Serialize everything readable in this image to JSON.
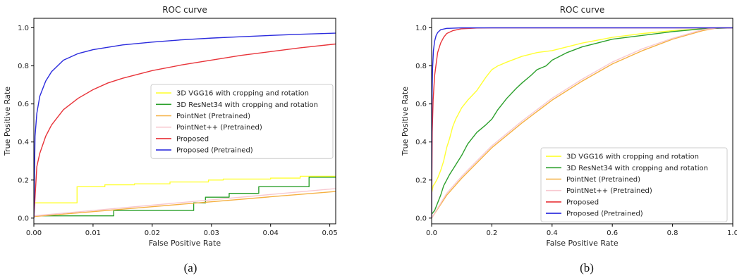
{
  "chart_data": [
    {
      "type": "line",
      "title": "ROC curve",
      "xlabel": "False Positive Rate",
      "ylabel": "True Positive Rate",
      "xlim": [
        0,
        0.051
      ],
      "ylim": [
        -0.03,
        1.05
      ],
      "xticks": [
        "0.00",
        "0.01",
        "0.02",
        "0.03",
        "0.04",
        "0.05"
      ],
      "yticks": [
        "0.0",
        "0.2",
        "0.4",
        "0.6",
        "0.8",
        "1.0"
      ],
      "xtick_values": [
        0,
        0.01,
        0.02,
        0.03,
        0.04,
        0.05
      ],
      "ytick_values": [
        0,
        0.2,
        0.4,
        0.6,
        0.8,
        1.0
      ],
      "legend_position": "center-right",
      "caption": "(a)",
      "series": [
        {
          "name": "3D VGG16 with cropping and rotation",
          "color": "#ffff33",
          "x": [
            0,
            0.0073,
            0.0073,
            0.012,
            0.012,
            0.017,
            0.017,
            0.023,
            0.023,
            0.0295,
            0.0295,
            0.032,
            0.032,
            0.04,
            0.04,
            0.045,
            0.045,
            0.051
          ],
          "y": [
            0.08,
            0.08,
            0.165,
            0.165,
            0.175,
            0.175,
            0.18,
            0.18,
            0.19,
            0.19,
            0.2,
            0.2,
            0.205,
            0.205,
            0.21,
            0.21,
            0.22,
            0.22
          ]
        },
        {
          "name": "3D ResNet34 with cropping and rotation",
          "color": "#2ca02c",
          "x": [
            0,
            0.0135,
            0.0135,
            0.027,
            0.027,
            0.029,
            0.029,
            0.033,
            0.033,
            0.038,
            0.038,
            0.0465,
            0.0465,
            0.051
          ],
          "y": [
            0.012,
            0.012,
            0.04,
            0.04,
            0.08,
            0.08,
            0.11,
            0.11,
            0.13,
            0.13,
            0.165,
            0.165,
            0.215,
            0.215
          ]
        },
        {
          "name": "PointNet (Pretrained)",
          "color": "#f5b041",
          "x": [
            0,
            0.01,
            0.02,
            0.03,
            0.04,
            0.051
          ],
          "y": [
            0.008,
            0.034,
            0.06,
            0.086,
            0.112,
            0.14
          ]
        },
        {
          "name": "PointNet++ (Pretrained)",
          "color": "#f8c8d0",
          "x": [
            0,
            0.01,
            0.02,
            0.03,
            0.04,
            0.051
          ],
          "y": [
            0.012,
            0.04,
            0.068,
            0.096,
            0.124,
            0.155
          ]
        },
        {
          "name": "Proposed",
          "color": "#e8343a",
          "x": [
            0,
            0.0005,
            0.001,
            0.002,
            0.003,
            0.005,
            0.0075,
            0.01,
            0.0125,
            0.015,
            0.02,
            0.025,
            0.03,
            0.035,
            0.04,
            0.045,
            0.051
          ],
          "y": [
            0,
            0.27,
            0.34,
            0.43,
            0.49,
            0.57,
            0.63,
            0.675,
            0.71,
            0.735,
            0.775,
            0.805,
            0.83,
            0.855,
            0.875,
            0.895,
            0.915
          ]
        },
        {
          "name": "Proposed (Pretrained)",
          "color": "#2b2bdd",
          "x": [
            0,
            0.0002,
            0.0005,
            0.001,
            0.002,
            0.003,
            0.005,
            0.0075,
            0.01,
            0.015,
            0.02,
            0.025,
            0.03,
            0.035,
            0.04,
            0.045,
            0.051
          ],
          "y": [
            0,
            0.43,
            0.55,
            0.64,
            0.72,
            0.77,
            0.83,
            0.865,
            0.885,
            0.91,
            0.925,
            0.937,
            0.946,
            0.953,
            0.96,
            0.966,
            0.972
          ]
        }
      ]
    },
    {
      "type": "line",
      "title": "ROC curve",
      "xlabel": "False Positive Rate",
      "ylabel": "True Positive Rate",
      "xlim": [
        0,
        1.0
      ],
      "ylim": [
        -0.03,
        1.05
      ],
      "xticks": [
        "0.0",
        "0.2",
        "0.4",
        "0.6",
        "0.8",
        "1.0"
      ],
      "yticks": [
        "0.0",
        "0.2",
        "0.4",
        "0.6",
        "0.8",
        "1.0"
      ],
      "xtick_values": [
        0,
        0.2,
        0.4,
        0.6,
        0.8,
        1.0
      ],
      "ytick_values": [
        0,
        0.2,
        0.4,
        0.6,
        0.8,
        1.0
      ],
      "legend_position": "lower-right",
      "caption": "(b)",
      "series": [
        {
          "name": "3D VGG16 with cropping and rotation",
          "color": "#ffff33",
          "x": [
            0,
            0.005,
            0.01,
            0.02,
            0.03,
            0.04,
            0.05,
            0.06,
            0.07,
            0.08,
            0.09,
            0.1,
            0.12,
            0.15,
            0.18,
            0.2,
            0.22,
            0.25,
            0.3,
            0.35,
            0.4,
            0.45,
            0.5,
            0.6,
            0.7,
            0.8,
            0.9,
            0.95,
            1.0
          ],
          "y": [
            0.13,
            0.17,
            0.18,
            0.21,
            0.25,
            0.3,
            0.37,
            0.42,
            0.48,
            0.52,
            0.55,
            0.58,
            0.62,
            0.67,
            0.74,
            0.78,
            0.8,
            0.82,
            0.85,
            0.87,
            0.88,
            0.9,
            0.92,
            0.95,
            0.97,
            0.985,
            0.995,
            1.0,
            1.0
          ]
        },
        {
          "name": "3D ResNet34 with cropping and rotation",
          "color": "#2ca02c",
          "x": [
            0,
            0.01,
            0.02,
            0.03,
            0.04,
            0.05,
            0.06,
            0.08,
            0.1,
            0.12,
            0.15,
            0.18,
            0.2,
            0.22,
            0.25,
            0.28,
            0.3,
            0.33,
            0.35,
            0.38,
            0.4,
            0.45,
            0.5,
            0.55,
            0.6,
            0.7,
            0.8,
            0.9,
            1.0
          ],
          "y": [
            0.02,
            0.04,
            0.08,
            0.12,
            0.17,
            0.2,
            0.23,
            0.28,
            0.33,
            0.39,
            0.45,
            0.49,
            0.52,
            0.57,
            0.63,
            0.68,
            0.71,
            0.75,
            0.78,
            0.8,
            0.83,
            0.87,
            0.9,
            0.92,
            0.94,
            0.96,
            0.98,
            0.995,
            1.0
          ]
        },
        {
          "name": "PointNet (Pretrained)",
          "color": "#f5b041",
          "x": [
            0,
            0.05,
            0.1,
            0.2,
            0.3,
            0.4,
            0.5,
            0.6,
            0.7,
            0.8,
            0.9,
            0.95,
            1.0
          ],
          "y": [
            0.0,
            0.12,
            0.21,
            0.37,
            0.5,
            0.62,
            0.72,
            0.81,
            0.88,
            0.94,
            0.985,
            1.0,
            1.0
          ]
        },
        {
          "name": "PointNet++ (Pretrained)",
          "color": "#f8c8d0",
          "x": [
            0,
            0.05,
            0.1,
            0.2,
            0.3,
            0.4,
            0.5,
            0.6,
            0.7,
            0.8,
            0.9,
            0.95,
            1.0
          ],
          "y": [
            0.0,
            0.13,
            0.22,
            0.38,
            0.51,
            0.63,
            0.73,
            0.82,
            0.89,
            0.945,
            0.99,
            1.0,
            1.0
          ]
        },
        {
          "name": "Proposed",
          "color": "#e8343a",
          "x": [
            0,
            0.002,
            0.005,
            0.01,
            0.02,
            0.03,
            0.04,
            0.05,
            0.07,
            0.1,
            0.15,
            0.2,
            0.3,
            1.0
          ],
          "y": [
            0,
            0.45,
            0.62,
            0.75,
            0.87,
            0.92,
            0.95,
            0.97,
            0.985,
            0.995,
            0.999,
            1.0,
            1.0,
            1.0
          ]
        },
        {
          "name": "Proposed (Pretrained)",
          "color": "#2b2bdd",
          "x": [
            0,
            0.001,
            0.003,
            0.006,
            0.01,
            0.015,
            0.02,
            0.03,
            0.05,
            0.1,
            0.2,
            1.0
          ],
          "y": [
            0,
            0.6,
            0.78,
            0.88,
            0.93,
            0.96,
            0.975,
            0.99,
            0.997,
            1.0,
            1.0,
            1.0
          ]
        }
      ]
    }
  ]
}
